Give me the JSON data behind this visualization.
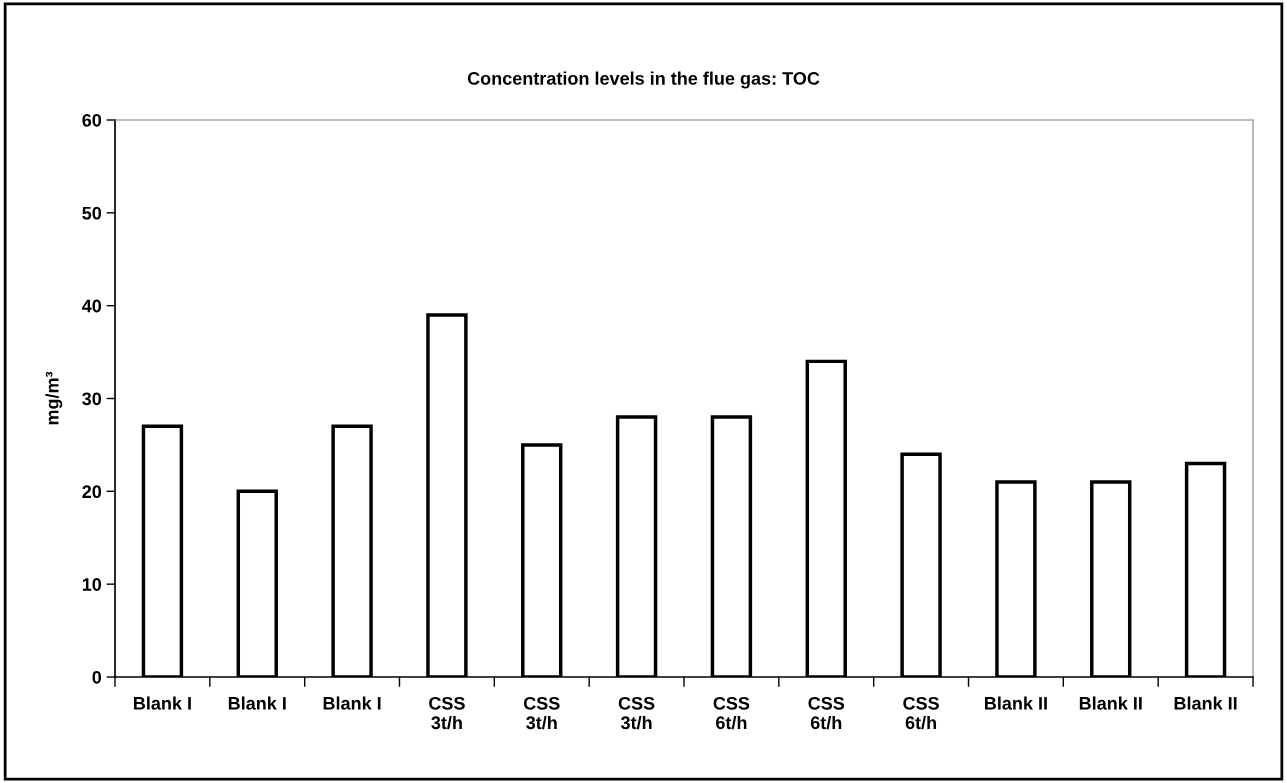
{
  "chart_data": {
    "type": "bar",
    "title": "Concentration levels in the flue gas: TOC",
    "ylabel": "mg/m³",
    "categories": [
      "Blank I",
      "Blank I",
      "Blank I",
      "CSS\n3t/h",
      "CSS\n3t/h",
      "CSS\n3t/h",
      "CSS\n6t/h",
      "CSS\n6t/h",
      "CSS\n6t/h",
      "Blank II",
      "Blank II",
      "Blank II"
    ],
    "values": [
      27,
      20,
      27,
      39,
      25,
      28,
      28,
      34,
      24,
      21,
      21,
      23
    ],
    "color": "#ffffff",
    "ylim": [
      0,
      60
    ],
    "yticks": [
      0,
      10,
      20,
      30,
      40,
      50,
      60
    ],
    "grid": false,
    "legend": false
  }
}
